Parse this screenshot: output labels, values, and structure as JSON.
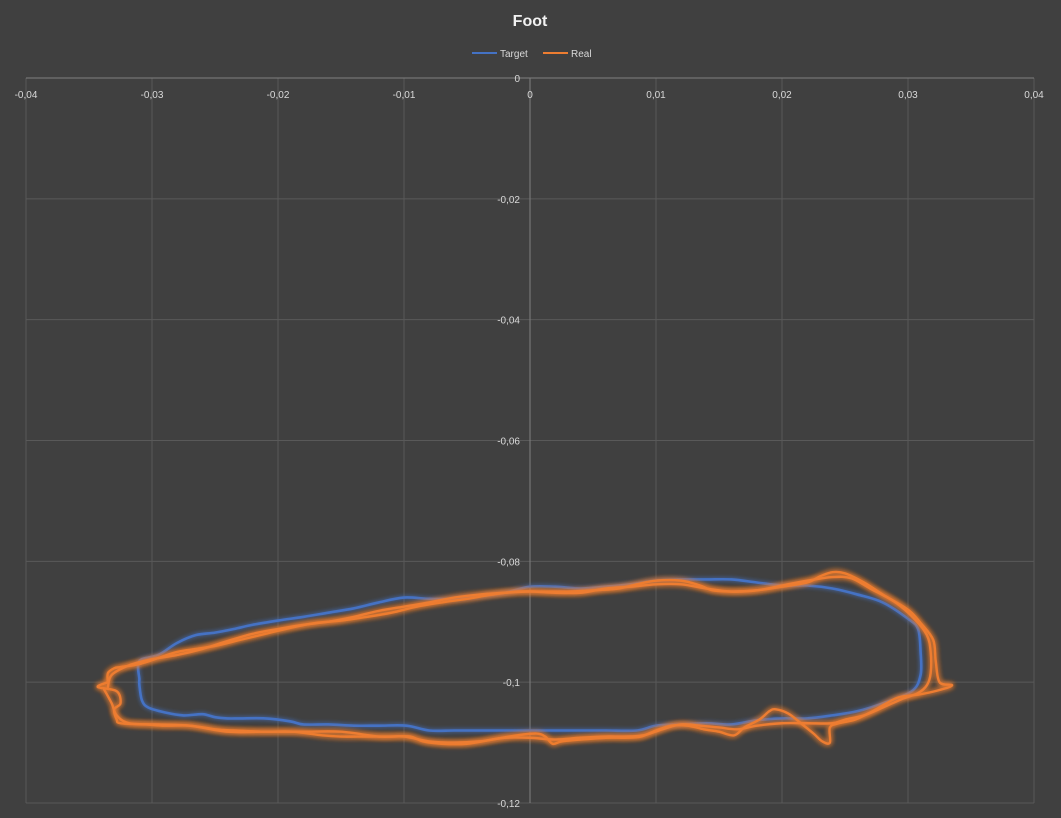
{
  "chart_data": {
    "type": "scatter",
    "title": "Foot",
    "xlabel": "",
    "ylabel": "",
    "xlim": [
      -0.04,
      0.04
    ],
    "ylim": [
      -0.12,
      0
    ],
    "x_ticks": [
      -0.04,
      -0.03,
      -0.02,
      -0.01,
      0,
      0.01,
      0.02,
      0.03,
      0.04
    ],
    "x_tick_labels": [
      "-0,04",
      "-0,03",
      "-0,02",
      "-0,01",
      "0",
      "0,01",
      "0,02",
      "0,03",
      "0,04"
    ],
    "y_ticks": [
      0,
      -0.02,
      -0.04,
      -0.06,
      -0.08,
      -0.1,
      -0.12
    ],
    "y_tick_labels": [
      "0",
      "-0,02",
      "-0,04",
      "-0,06",
      "-0,08",
      "-0,1",
      "-0,12"
    ],
    "grid": true,
    "legend_position": "top-center",
    "legend": [
      "Target",
      "Real"
    ],
    "series": [
      {
        "name": "Target",
        "color": "#4472c4",
        "points": [
          [
            -0.031,
            -0.0995
          ],
          [
            -0.031,
            -0.0965
          ],
          [
            -0.0295,
            -0.0955
          ],
          [
            -0.028,
            -0.0935
          ],
          [
            -0.0265,
            -0.0922
          ],
          [
            -0.025,
            -0.0918
          ],
          [
            -0.0235,
            -0.0912
          ],
          [
            -0.022,
            -0.0905
          ],
          [
            -0.02,
            -0.0898
          ],
          [
            -0.018,
            -0.0892
          ],
          [
            -0.016,
            -0.0885
          ],
          [
            -0.014,
            -0.0878
          ],
          [
            -0.012,
            -0.0868
          ],
          [
            -0.01,
            -0.086
          ],
          [
            -0.008,
            -0.0862
          ],
          [
            -0.006,
            -0.0862
          ],
          [
            -0.004,
            -0.0858
          ],
          [
            -0.002,
            -0.0852
          ],
          [
            0.0,
            -0.0842
          ],
          [
            0.002,
            -0.0842
          ],
          [
            0.004,
            -0.0845
          ],
          [
            0.006,
            -0.0842
          ],
          [
            0.008,
            -0.0838
          ],
          [
            0.01,
            -0.0832
          ],
          [
            0.012,
            -0.083
          ],
          [
            0.014,
            -0.083
          ],
          [
            0.016,
            -0.083
          ],
          [
            0.018,
            -0.0835
          ],
          [
            0.02,
            -0.084
          ],
          [
            0.022,
            -0.084
          ],
          [
            0.024,
            -0.0845
          ],
          [
            0.026,
            -0.0855
          ],
          [
            0.028,
            -0.0868
          ],
          [
            0.03,
            -0.0895
          ],
          [
            0.0308,
            -0.0912
          ],
          [
            0.031,
            -0.095
          ],
          [
            0.031,
            -0.0988
          ],
          [
            0.0303,
            -0.1015
          ],
          [
            0.028,
            -0.1035
          ],
          [
            0.026,
            -0.1048
          ],
          [
            0.024,
            -0.1055
          ],
          [
            0.022,
            -0.106
          ],
          [
            0.02,
            -0.106
          ],
          [
            0.018,
            -0.1063
          ],
          [
            0.016,
            -0.107
          ],
          [
            0.014,
            -0.1068
          ],
          [
            0.012,
            -0.107
          ],
          [
            0.01,
            -0.1072
          ],
          [
            0.0085,
            -0.108
          ],
          [
            0.006,
            -0.108
          ],
          [
            0.004,
            -0.108
          ],
          [
            0.002,
            -0.108
          ],
          [
            0.0,
            -0.108
          ],
          [
            -0.002,
            -0.108
          ],
          [
            -0.004,
            -0.108
          ],
          [
            -0.006,
            -0.108
          ],
          [
            -0.008,
            -0.108
          ],
          [
            -0.0098,
            -0.1072
          ],
          [
            -0.012,
            -0.1072
          ],
          [
            -0.014,
            -0.1072
          ],
          [
            -0.016,
            -0.107
          ],
          [
            -0.018,
            -0.107
          ],
          [
            -0.019,
            -0.1065
          ],
          [
            -0.021,
            -0.106
          ],
          [
            -0.023,
            -0.106
          ],
          [
            -0.024,
            -0.106
          ],
          [
            -0.025,
            -0.1058
          ],
          [
            -0.026,
            -0.1053
          ],
          [
            -0.0275,
            -0.1055
          ],
          [
            -0.029,
            -0.105
          ],
          [
            -0.0303,
            -0.1042
          ],
          [
            -0.0308,
            -0.103
          ],
          [
            -0.031,
            -0.1005
          ],
          [
            -0.031,
            -0.0995
          ]
        ]
      },
      {
        "name": "Real",
        "color": "#ed7d31",
        "points": [
          [
            -0.0335,
            -0.1
          ],
          [
            -0.0335,
            -0.0985
          ],
          [
            -0.033,
            -0.0977
          ],
          [
            -0.0325,
            -0.0975
          ],
          [
            -0.031,
            -0.097
          ],
          [
            -0.0295,
            -0.096
          ],
          [
            -0.028,
            -0.095
          ],
          [
            -0.0265,
            -0.0945
          ],
          [
            -0.025,
            -0.094
          ],
          [
            -0.023,
            -0.093
          ],
          [
            -0.021,
            -0.092
          ],
          [
            -0.019,
            -0.091
          ],
          [
            -0.017,
            -0.0902
          ],
          [
            -0.015,
            -0.0898
          ],
          [
            -0.013,
            -0.0892
          ],
          [
            -0.011,
            -0.0885
          ],
          [
            -0.009,
            -0.0875
          ],
          [
            -0.007,
            -0.0868
          ],
          [
            -0.005,
            -0.0862
          ],
          [
            -0.003,
            -0.0855
          ],
          [
            -0.001,
            -0.085
          ],
          [
            0.001,
            -0.085
          ],
          [
            0.003,
            -0.085
          ],
          [
            0.005,
            -0.0848
          ],
          [
            0.007,
            -0.0845
          ],
          [
            0.0085,
            -0.0838
          ],
          [
            0.01,
            -0.0832
          ],
          [
            0.012,
            -0.0832
          ],
          [
            0.0135,
            -0.084
          ],
          [
            0.0145,
            -0.0848
          ],
          [
            0.016,
            -0.085
          ],
          [
            0.018,
            -0.0848
          ],
          [
            0.02,
            -0.0842
          ],
          [
            0.022,
            -0.0835
          ],
          [
            0.023,
            -0.0825
          ],
          [
            0.024,
            -0.0818
          ],
          [
            0.025,
            -0.082
          ],
          [
            0.0265,
            -0.0835
          ],
          [
            0.028,
            -0.0855
          ],
          [
            0.03,
            -0.088
          ],
          [
            0.031,
            -0.0902
          ],
          [
            0.032,
            -0.093
          ],
          [
            0.0322,
            -0.0965
          ],
          [
            0.0325,
            -0.1
          ],
          [
            0.0335,
            -0.1005
          ],
          [
            0.0325,
            -0.1013
          ],
          [
            0.031,
            -0.102
          ],
          [
            0.0293,
            -0.1025
          ],
          [
            0.0283,
            -0.1035
          ],
          [
            0.0272,
            -0.1048
          ],
          [
            0.0258,
            -0.1062
          ],
          [
            0.0245,
            -0.1068
          ],
          [
            0.0238,
            -0.1075
          ],
          [
            0.0238,
            -0.11
          ],
          [
            0.0232,
            -0.1098
          ],
          [
            0.0225,
            -0.1085
          ],
          [
            0.0215,
            -0.1068
          ],
          [
            0.0205,
            -0.1052
          ],
          [
            0.0195,
            -0.1045
          ],
          [
            0.019,
            -0.1048
          ],
          [
            0.0182,
            -0.1062
          ],
          [
            0.017,
            -0.1075
          ],
          [
            0.0162,
            -0.1088
          ],
          [
            0.015,
            -0.1082
          ],
          [
            0.0138,
            -0.1078
          ],
          [
            0.0125,
            -0.1072
          ],
          [
            0.0112,
            -0.1072
          ],
          [
            0.01,
            -0.108
          ],
          [
            0.0088,
            -0.109
          ],
          [
            0.0075,
            -0.1092
          ],
          [
            0.006,
            -0.1092
          ],
          [
            0.004,
            -0.1095
          ],
          [
            0.0025,
            -0.1098
          ],
          [
            0.0018,
            -0.1102
          ],
          [
            0.0012,
            -0.109
          ],
          [
            0.0005,
            -0.1085
          ],
          [
            -0.001,
            -0.1088
          ],
          [
            -0.003,
            -0.1095
          ],
          [
            -0.005,
            -0.1102
          ],
          [
            -0.007,
            -0.1102
          ],
          [
            -0.0085,
            -0.1098
          ],
          [
            -0.0095,
            -0.109
          ],
          [
            -0.011,
            -0.109
          ],
          [
            -0.013,
            -0.109
          ],
          [
            -0.015,
            -0.109
          ],
          [
            -0.0165,
            -0.1088
          ],
          [
            -0.0188,
            -0.1082
          ],
          [
            -0.021,
            -0.1082
          ],
          [
            -0.0235,
            -0.108
          ],
          [
            -0.025,
            -0.1078
          ],
          [
            -0.027,
            -0.1072
          ],
          [
            -0.029,
            -0.1072
          ],
          [
            -0.0305,
            -0.107
          ],
          [
            -0.0325,
            -0.1068
          ],
          [
            -0.0328,
            -0.1062
          ],
          [
            -0.033,
            -0.1045
          ],
          [
            -0.0325,
            -0.1035
          ],
          [
            -0.0328,
            -0.1015
          ],
          [
            -0.0343,
            -0.1008
          ],
          [
            -0.0335,
            -0.1
          ]
        ]
      },
      {
        "name": "Real",
        "color": "#ed7d31",
        "points": [
          [
            -0.0335,
            -0.1008
          ],
          [
            -0.0332,
            -0.0988
          ],
          [
            -0.0318,
            -0.0972
          ],
          [
            -0.03,
            -0.0962
          ],
          [
            -0.028,
            -0.0955
          ],
          [
            -0.026,
            -0.0945
          ],
          [
            -0.024,
            -0.0932
          ],
          [
            -0.022,
            -0.092
          ],
          [
            -0.02,
            -0.0912
          ],
          [
            -0.018,
            -0.0905
          ],
          [
            -0.016,
            -0.09
          ],
          [
            -0.014,
            -0.0892
          ],
          [
            -0.012,
            -0.0882
          ],
          [
            -0.01,
            -0.0875
          ],
          [
            -0.008,
            -0.0868
          ],
          [
            -0.006,
            -0.086
          ],
          [
            -0.004,
            -0.0855
          ],
          [
            -0.002,
            -0.0852
          ],
          [
            0.0,
            -0.085
          ],
          [
            0.002,
            -0.0852
          ],
          [
            0.004,
            -0.0852
          ],
          [
            0.006,
            -0.0845
          ],
          [
            0.008,
            -0.0842
          ],
          [
            0.01,
            -0.0838
          ],
          [
            0.012,
            -0.0838
          ],
          [
            0.014,
            -0.0845
          ],
          [
            0.016,
            -0.085
          ],
          [
            0.018,
            -0.0848
          ],
          [
            0.02,
            -0.084
          ],
          [
            0.022,
            -0.0832
          ],
          [
            0.024,
            -0.0826
          ],
          [
            0.0255,
            -0.0828
          ],
          [
            0.027,
            -0.0845
          ],
          [
            0.029,
            -0.0868
          ],
          [
            0.0305,
            -0.0895
          ],
          [
            0.0315,
            -0.0922
          ],
          [
            0.0318,
            -0.095
          ],
          [
            0.0318,
            -0.0985
          ],
          [
            0.0315,
            -0.1005
          ],
          [
            0.0308,
            -0.1018
          ],
          [
            0.0295,
            -0.1028
          ],
          [
            0.028,
            -0.1042
          ],
          [
            0.0265,
            -0.1055
          ],
          [
            0.025,
            -0.1062
          ],
          [
            0.024,
            -0.1068
          ],
          [
            0.022,
            -0.1068
          ],
          [
            0.02,
            -0.1068
          ],
          [
            0.018,
            -0.1072
          ],
          [
            0.0165,
            -0.1078
          ],
          [
            0.015,
            -0.1075
          ],
          [
            0.0135,
            -0.1072
          ],
          [
            0.012,
            -0.107
          ],
          [
            0.0105,
            -0.1078
          ],
          [
            0.009,
            -0.1088
          ],
          [
            0.0075,
            -0.109
          ],
          [
            0.006,
            -0.109
          ],
          [
            0.004,
            -0.1092
          ],
          [
            0.002,
            -0.1095
          ],
          [
            0.0,
            -0.1092
          ],
          [
            -0.002,
            -0.1092
          ],
          [
            -0.004,
            -0.1098
          ],
          [
            -0.006,
            -0.11
          ],
          [
            -0.008,
            -0.1098
          ],
          [
            -0.01,
            -0.109
          ],
          [
            -0.012,
            -0.109
          ],
          [
            -0.015,
            -0.1082
          ],
          [
            -0.018,
            -0.1082
          ],
          [
            -0.021,
            -0.1082
          ],
          [
            -0.024,
            -0.1082
          ],
          [
            -0.027,
            -0.1072
          ],
          [
            -0.0295,
            -0.107
          ],
          [
            -0.0318,
            -0.1068
          ],
          [
            -0.0328,
            -0.1055
          ],
          [
            -0.0332,
            -0.1035
          ],
          [
            -0.0338,
            -0.1012
          ]
        ]
      }
    ]
  }
}
